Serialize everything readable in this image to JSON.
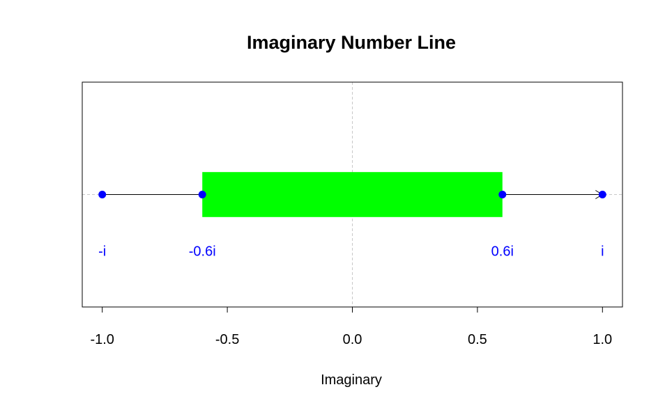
{
  "chart_data": {
    "type": "scatter",
    "title": "Imaginary Number Line",
    "xlabel": "Imaginary",
    "ylabel": "",
    "xlim": [
      -1.08,
      1.08
    ],
    "ylim": [
      -1,
      1
    ],
    "x_ticks": [
      -1.0,
      -0.5,
      0.0,
      0.5,
      1.0
    ],
    "x_tick_labels": [
      "-1.0",
      "-0.5",
      "0.0",
      "0.5",
      "1.0"
    ],
    "grid": false,
    "reference_lines": {
      "vertical_at": 0.0,
      "horizontal_at": 0.0,
      "style": "dashed",
      "color": "#c8c8c8"
    },
    "band": {
      "x_start": -0.6,
      "x_end": 0.6,
      "y_start": -0.2,
      "y_end": 0.2,
      "color": "#00ff00"
    },
    "segments": [
      {
        "from": -1.0,
        "to": -0.6,
        "arrow": false
      },
      {
        "from": 0.6,
        "to": 1.0,
        "arrow": true
      }
    ],
    "points": [
      {
        "x": -1.0,
        "label": "-i"
      },
      {
        "x": -0.6,
        "label": "-0.6i"
      },
      {
        "x": 0.6,
        "label": "0.6i"
      },
      {
        "x": 1.0,
        "label": "i"
      }
    ],
    "point_color": "#0000ff",
    "label_color": "#0000ff",
    "label_y": -0.5
  }
}
